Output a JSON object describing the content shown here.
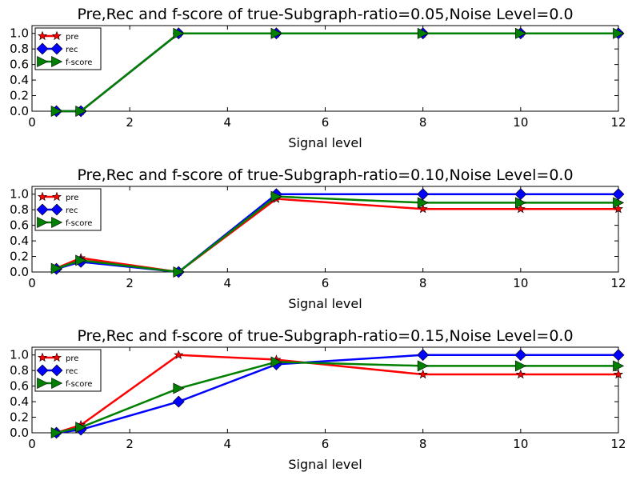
{
  "colors": {
    "pre": "#ff0000",
    "rec": "#0000ff",
    "f-score": "#008000"
  },
  "chart_data": [
    {
      "type": "line",
      "title": "Pre,Rec and f-score of true-Subgraph-ratio=0.05,Noise Level=0.0",
      "xlabel": "Signal level",
      "ylabel": "",
      "xlim": [
        0,
        12
      ],
      "ylim": [
        0.0,
        1.1
      ],
      "xticks": [
        "0",
        "2",
        "4",
        "6",
        "8",
        "10",
        "12"
      ],
      "yticks": [
        "0.0",
        "0.2",
        "0.4",
        "0.6",
        "0.8",
        "1.0"
      ],
      "legend": "top-left",
      "grid": false,
      "x": [
        0.5,
        1,
        3,
        5,
        8,
        10,
        12
      ],
      "series": [
        {
          "name": "pre",
          "marker": "star",
          "values": [
            0.0,
            0.0,
            1.0,
            1.0,
            1.0,
            1.0,
            1.0
          ]
        },
        {
          "name": "rec",
          "marker": "diamond",
          "values": [
            0.0,
            0.0,
            1.0,
            1.0,
            1.0,
            1.0,
            1.0
          ]
        },
        {
          "name": "f-score",
          "marker": "triangle-right",
          "values": [
            0.0,
            0.0,
            1.0,
            1.0,
            1.0,
            1.0,
            1.0
          ]
        }
      ]
    },
    {
      "type": "line",
      "title": "Pre,Rec and f-score of true-Subgraph-ratio=0.10,Noise Level=0.0",
      "xlabel": "Signal level",
      "ylabel": "",
      "xlim": [
        0,
        12
      ],
      "ylim": [
        0.0,
        1.1
      ],
      "xticks": [
        "0",
        "2",
        "4",
        "6",
        "8",
        "10",
        "12"
      ],
      "yticks": [
        "0.0",
        "0.2",
        "0.4",
        "0.6",
        "0.8",
        "1.0"
      ],
      "legend": "top-left",
      "grid": false,
      "x": [
        0.5,
        1,
        3,
        5,
        8,
        10,
        12
      ],
      "series": [
        {
          "name": "pre",
          "marker": "star",
          "values": [
            0.05,
            0.18,
            0.0,
            0.94,
            0.81,
            0.81,
            0.81
          ]
        },
        {
          "name": "rec",
          "marker": "diamond",
          "values": [
            0.04,
            0.13,
            0.0,
            1.0,
            1.0,
            1.0,
            1.0
          ]
        },
        {
          "name": "f-score",
          "marker": "triangle-right",
          "values": [
            0.045,
            0.15,
            0.0,
            0.97,
            0.89,
            0.89,
            0.89
          ]
        }
      ]
    },
    {
      "type": "line",
      "title": "Pre,Rec and f-score of true-Subgraph-ratio=0.15,Noise Level=0.0",
      "xlabel": "Signal level",
      "ylabel": "",
      "xlim": [
        0,
        12
      ],
      "ylim": [
        0.0,
        1.1
      ],
      "xticks": [
        "0",
        "2",
        "4",
        "6",
        "8",
        "10",
        "12"
      ],
      "yticks": [
        "0.0",
        "0.2",
        "0.4",
        "0.6",
        "0.8",
        "1.0"
      ],
      "legend": "top-left",
      "grid": false,
      "x": [
        0.5,
        1,
        3,
        5,
        8,
        10,
        12
      ],
      "series": [
        {
          "name": "pre",
          "marker": "star",
          "values": [
            0.0,
            0.1,
            1.0,
            0.94,
            0.75,
            0.75,
            0.75
          ]
        },
        {
          "name": "rec",
          "marker": "diamond",
          "values": [
            0.0,
            0.04,
            0.4,
            0.88,
            1.0,
            1.0,
            1.0
          ]
        },
        {
          "name": "f-score",
          "marker": "triangle-right",
          "values": [
            0.0,
            0.07,
            0.57,
            0.91,
            0.86,
            0.86,
            0.86
          ]
        }
      ]
    }
  ]
}
